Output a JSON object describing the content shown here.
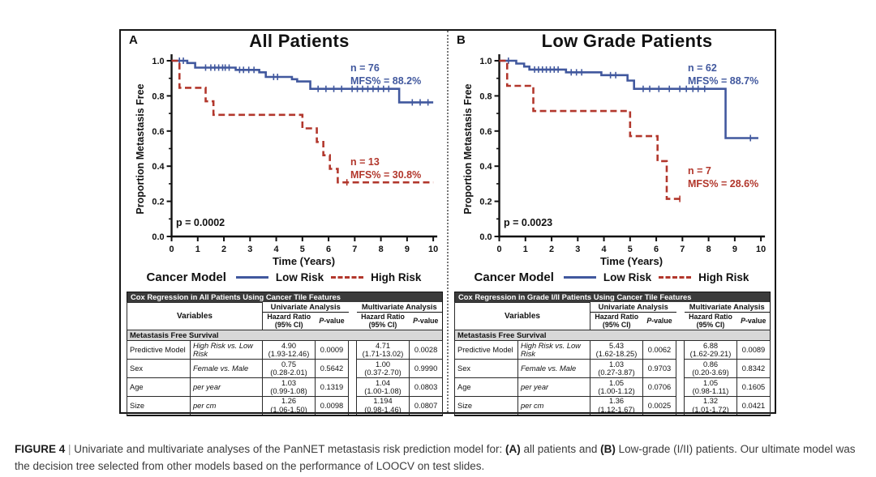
{
  "figure": {
    "axis": {
      "ylabel": "Proportion Metastasis Free",
      "xlabel": "Time (Years)"
    },
    "legend": {
      "title": "Cancer Model",
      "low_label": "Low Risk",
      "high_label": "High Risk"
    },
    "table_header": {
      "variables": "Variables",
      "univariate": "Univariate Analysis",
      "multivariate": "Multivariate Analysis",
      "hazard_ratio": "Hazard Ratio",
      "ci": "(95% CI)",
      "p_italic": "P",
      "p_suffix": "-value"
    },
    "panels": [
      {
        "letter": "A",
        "title": "All Patients",
        "p_label": "p = 0.0002",
        "low_risk_annotation": {
          "n": "n = 76",
          "mfs": "MFS% = 88.2%"
        },
        "high_risk_annotation": {
          "n": "n = 13",
          "mfs": "MFS% = 30.8%"
        },
        "table": {
          "title": "Cox Regression in All Patients Using Cancer Tile Features",
          "section": "Metastasis Free Survival",
          "rows": [
            {
              "variable": "Predictive Model",
              "comparison": "High Risk vs. Low Risk",
              "uni_hr": "4.90",
              "uni_ci": "(1.93-12.46)",
              "uni_p": "0.0009",
              "multi_hr": "4.71",
              "multi_ci": "(1.71-13.02)",
              "multi_p": "0.0028"
            },
            {
              "variable": "Sex",
              "comparison": "Female vs. Male",
              "uni_hr": "0.75",
              "uni_ci": "(0.28-2.01)",
              "uni_p": "0.5642",
              "multi_hr": "1.00",
              "multi_ci": "(0.37-2.70)",
              "multi_p": "0.9990"
            },
            {
              "variable": "Age",
              "comparison": "per year",
              "uni_hr": "1.03",
              "uni_ci": "(0.99-1.08)",
              "uni_p": "0.1319",
              "multi_hr": "1.04",
              "multi_ci": "(1.00-1.08)",
              "multi_p": "0.0803"
            },
            {
              "variable": "Size",
              "comparison": "per cm",
              "uni_hr": "1.26",
              "uni_ci": "(1.06-1.50)",
              "uni_p": "0.0098",
              "multi_hr": "1.194",
              "multi_ci": "(0.98-1.46)",
              "multi_p": "0.0807"
            }
          ]
        }
      },
      {
        "letter": "B",
        "title": "Low Grade Patients",
        "p_label": "p = 0.0023",
        "low_risk_annotation": {
          "n": "n = 62",
          "mfs": "MFS% = 88.7%"
        },
        "high_risk_annotation": {
          "n": "n = 7",
          "mfs": "MFS% = 28.6%"
        },
        "table": {
          "title": "Cox Regression in Grade I/II Patients Using Cancer Tile Features",
          "section": "Metastasis Free Survival",
          "rows": [
            {
              "variable": "Predictive Model",
              "comparison": "High Risk vs. Low Risk",
              "uni_hr": "5.43",
              "uni_ci": "(1.62-18.25)",
              "uni_p": "0.0062",
              "multi_hr": "6.88",
              "multi_ci": "(1.62-29.21)",
              "multi_p": "0.0089"
            },
            {
              "variable": "Sex",
              "comparison": "Female vs. Male",
              "uni_hr": "1.03",
              "uni_ci": "(0.27-3.87)",
              "uni_p": "0.9703",
              "multi_hr": "0.86",
              "multi_ci": "(0.20-3.69)",
              "multi_p": "0.8342"
            },
            {
              "variable": "Age",
              "comparison": "per year",
              "uni_hr": "1.05",
              "uni_ci": "(1.00-1.12)",
              "uni_p": "0.0706",
              "multi_hr": "1.05",
              "multi_ci": "(0.98-1.11)",
              "multi_p": "0.1605"
            },
            {
              "variable": "Size",
              "comparison": "per cm",
              "uni_hr": "1.36",
              "uni_ci": "(1.12-1.67)",
              "uni_p": "0.0025",
              "multi_hr": "1.32",
              "multi_ci": "(1.01-1.72)",
              "multi_p": "0.0421"
            }
          ]
        }
      }
    ]
  },
  "chart_data": [
    {
      "type": "line",
      "subtype": "kaplan-meier",
      "title": "All Patients",
      "xlabel": "Time (Years)",
      "ylabel": "Proportion Metastasis Free",
      "xlim": [
        0,
        10
      ],
      "ylim": [
        0.0,
        1.0
      ],
      "xticks": [
        0,
        1,
        2,
        3,
        4,
        5,
        6,
        7,
        8,
        9,
        10
      ],
      "yticks": [
        0.0,
        0.2,
        0.4,
        0.6,
        0.8,
        1.0
      ],
      "p_value": "p = 0.0002",
      "legend_position": "below",
      "series": [
        {
          "name": "Low Risk",
          "color_key": "low_risk",
          "dashed": false,
          "n": 76,
          "mfs_pct": 88.2,
          "steps": [
            [
              0,
              1.0
            ],
            [
              0.6,
              0.987
            ],
            [
              0.9,
              0.961
            ],
            [
              2.45,
              0.948
            ],
            [
              3.35,
              0.934
            ],
            [
              3.6,
              0.908
            ],
            [
              4.6,
              0.895
            ],
            [
              4.8,
              0.882
            ],
            [
              5.3,
              0.84
            ],
            [
              8.7,
              0.763
            ]
          ],
          "end": 10,
          "censor_times": [
            0.3,
            0.45,
            1.3,
            1.5,
            1.65,
            1.8,
            1.95,
            2.05,
            2.2,
            2.6,
            2.75,
            2.95,
            3.15,
            3.9,
            4.05,
            5.6,
            5.9,
            6.2,
            6.5,
            6.9,
            7.1,
            7.3,
            7.5,
            7.7,
            7.9,
            8.1,
            8.3,
            9.2,
            9.5,
            9.8
          ]
        },
        {
          "name": "High Risk",
          "color_key": "high_risk",
          "dashed": true,
          "n": 13,
          "mfs_pct": 30.8,
          "steps": [
            [
              0,
              1.0
            ],
            [
              0.3,
              0.846
            ],
            [
              1.3,
              0.769
            ],
            [
              1.6,
              0.692
            ],
            [
              5.0,
              0.615
            ],
            [
              5.55,
              0.538
            ],
            [
              5.8,
              0.462
            ],
            [
              6.05,
              0.385
            ],
            [
              6.35,
              0.308
            ]
          ],
          "end": 10,
          "censor_times": [
            6.7
          ]
        }
      ]
    },
    {
      "type": "line",
      "subtype": "kaplan-meier",
      "title": "Low Grade Patients",
      "xlabel": "Time (Years)",
      "ylabel": "Proportion Metastasis Free",
      "xlim": [
        0,
        10
      ],
      "ylim": [
        0.0,
        1.0
      ],
      "xticks": [
        0,
        1,
        2,
        3,
        4,
        5,
        6,
        7,
        8,
        9,
        10
      ],
      "yticks": [
        0.0,
        0.2,
        0.4,
        0.6,
        0.8,
        1.0
      ],
      "p_value": "p = 0.0023",
      "legend_position": "below",
      "series": [
        {
          "name": "Low Risk",
          "color_key": "low_risk",
          "dashed": false,
          "n": 62,
          "mfs_pct": 88.7,
          "steps": [
            [
              0,
              1.0
            ],
            [
              0.65,
              0.984
            ],
            [
              0.95,
              0.967
            ],
            [
              1.15,
              0.95
            ],
            [
              2.55,
              0.934
            ],
            [
              3.9,
              0.918
            ],
            [
              4.9,
              0.887
            ],
            [
              5.15,
              0.84
            ],
            [
              8.65,
              0.56
            ]
          ],
          "end": 9.9,
          "censor_times": [
            0.35,
            1.35,
            1.5,
            1.65,
            1.8,
            1.95,
            2.1,
            2.25,
            2.75,
            2.95,
            3.15,
            4.25,
            4.45,
            5.5,
            5.75,
            6.1,
            6.5,
            6.9,
            7.15,
            7.4,
            7.6,
            7.85,
            9.6
          ]
        },
        {
          "name": "High Risk",
          "color_key": "high_risk",
          "dashed": true,
          "n": 7,
          "mfs_pct": 28.6,
          "steps": [
            [
              0,
              1.0
            ],
            [
              0.3,
              0.857
            ],
            [
              1.3,
              0.714
            ],
            [
              5.0,
              0.571
            ],
            [
              6.05,
              0.429
            ],
            [
              6.4,
              0.214
            ]
          ],
          "end": 7.0,
          "censor_times": [
            6.9
          ]
        }
      ]
    }
  ],
  "caption": {
    "segments": [
      {
        "text": "FIGURE 4",
        "style": "bold"
      },
      {
        "text": " | ",
        "style": "sep"
      },
      {
        "text": "Univariate and multivariate analyses of the PanNET metastasis risk prediction model for: ",
        "style": "plain"
      },
      {
        "text": "(A)",
        "style": "bold"
      },
      {
        "text": " all patients and ",
        "style": "plain"
      },
      {
        "text": "(B)",
        "style": "bold"
      },
      {
        "text": " Low-grade (I/II) patients. Our ultimate model was the decision tree selected from other models based on the performance of LOOCV on test slides.",
        "style": "plain"
      }
    ]
  },
  "colors": {
    "low_risk": "#41589E",
    "high_risk": "#B2372C",
    "table_bar": "#3B3B3B",
    "section_bg": "#D8D8D8"
  }
}
